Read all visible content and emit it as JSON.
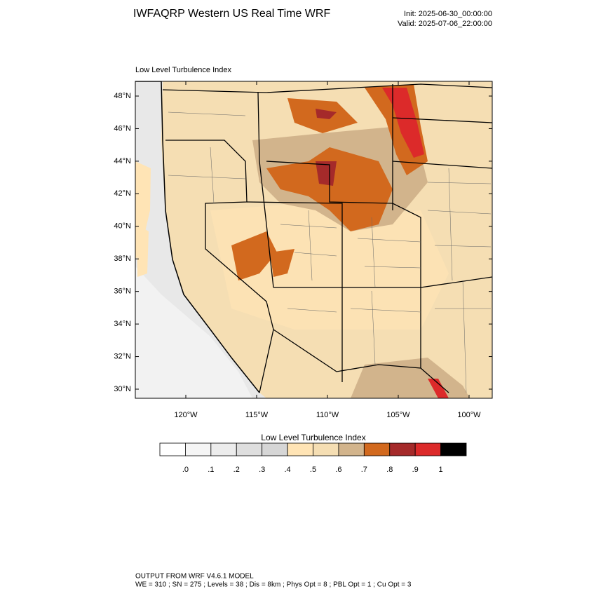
{
  "header": {
    "title": "IWFAQRP Western US Real Time WRF",
    "init": "Init: 2025-06-30_00:00:00",
    "valid": "Valid: 2025-07-06_22:00:00"
  },
  "map": {
    "title": "Low Level Turbulence Index",
    "lat_ticks": [
      {
        "value": 48,
        "label": "48°N"
      },
      {
        "value": 46,
        "label": "46°N"
      },
      {
        "value": 44,
        "label": "44°N"
      },
      {
        "value": 42,
        "label": "42°N"
      },
      {
        "value": 40,
        "label": "40°N"
      },
      {
        "value": 38,
        "label": "38°N"
      },
      {
        "value": 36,
        "label": "36°N"
      },
      {
        "value": 34,
        "label": "34°N"
      },
      {
        "value": 32,
        "label": "32°N"
      },
      {
        "value": 30,
        "label": "30°N"
      }
    ],
    "lon_ticks": [
      {
        "value": -120,
        "label": "120°W"
      },
      {
        "value": -115,
        "label": "115°W"
      },
      {
        "value": -110,
        "label": "110°W"
      },
      {
        "value": -105,
        "label": "105°W"
      },
      {
        "value": -100,
        "label": "100°W"
      }
    ]
  },
  "colorbar": {
    "title": "Low Level Turbulence Index",
    "levels": [
      {
        "value": 0,
        "label": ".0"
      },
      {
        "value": 0.1,
        "label": ".1"
      },
      {
        "value": 0.2,
        "label": ".2"
      },
      {
        "value": 0.3,
        "label": ".3"
      },
      {
        "value": 0.4,
        "label": ".4"
      },
      {
        "value": 0.5,
        "label": ".5"
      },
      {
        "value": 0.6,
        "label": ".6"
      },
      {
        "value": 0.7,
        "label": ".7"
      },
      {
        "value": 0.8,
        "label": ".8"
      },
      {
        "value": 0.9,
        "label": ".9"
      },
      1
    ],
    "colors": [
      "#ffffff",
      "#f5f5f5",
      "#ececec",
      "#dedede",
      "#d6d6d6",
      "#ffe4b5",
      "#f5deb3",
      "#d2b48c",
      "#d2691e",
      "#a52a2a",
      "#dc2a2a",
      "#000000"
    ]
  },
  "footer": {
    "line1": "OUTPUT FROM WRF V4.6.1 MODEL",
    "line2": "WE = 310 ; SN = 275 ; Levels = 38 ; Dis = 8km ; Phys Opt = 8 ; PBL Opt = 1 ; Cu Opt = 3"
  }
}
